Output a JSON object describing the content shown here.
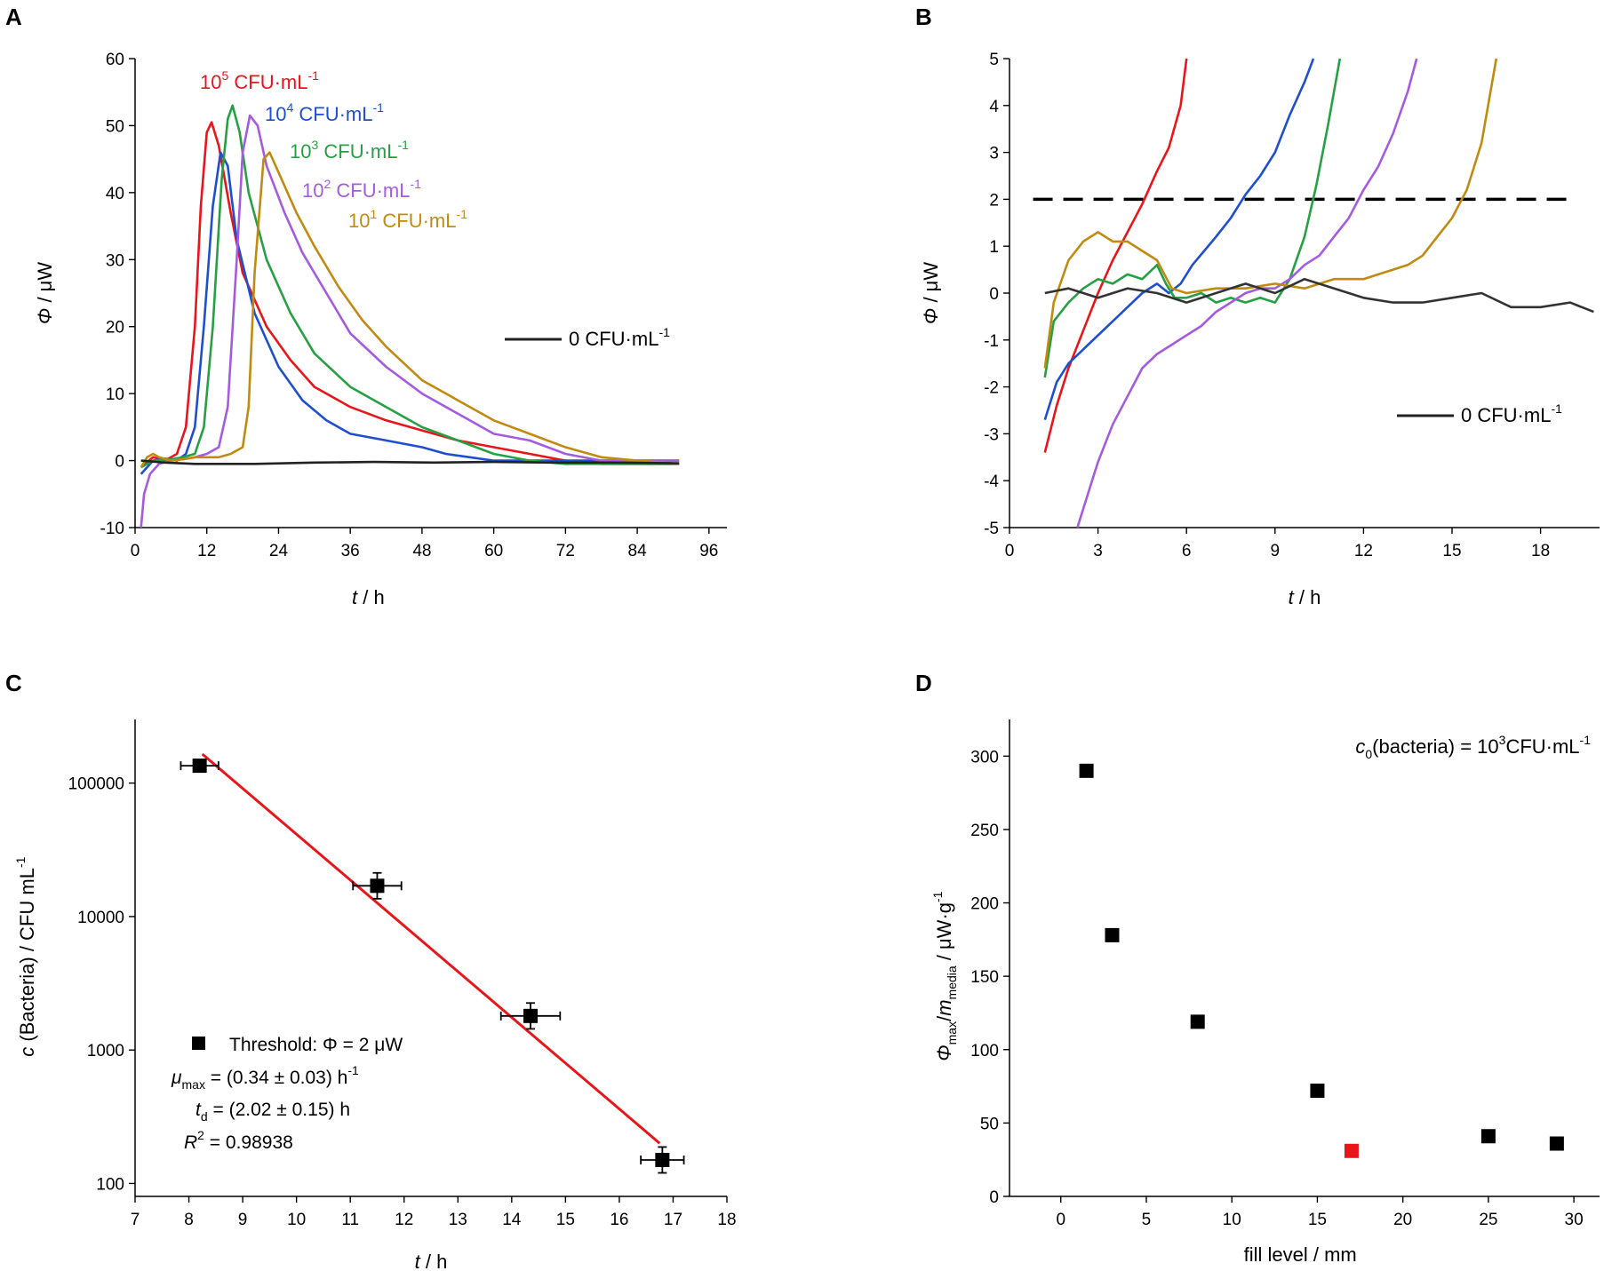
{
  "chart_data": [
    {
      "panel": "A",
      "type": "line",
      "xlabel": "t / h",
      "ylabel": "Φ / μW",
      "xlim": [
        0,
        99
      ],
      "ylim": [
        -10,
        60
      ],
      "xticks": [
        0,
        12,
        24,
        36,
        48,
        60,
        72,
        84,
        96
      ],
      "yticks": [
        -10,
        0,
        10,
        20,
        30,
        40,
        50,
        60
      ],
      "series": [
        {
          "name": "10^5 CFU·mL^-1",
          "label_base": "10",
          "label_exp": "5",
          "label_unit": "CFU·mL",
          "label_unit_exp": "-1",
          "color": "#e8151b",
          "x": [
            1,
            3,
            5,
            7,
            8.5,
            10,
            11,
            12,
            12.8,
            14,
            16,
            18,
            22,
            26,
            30,
            36,
            42,
            48,
            54,
            60,
            66,
            72,
            78,
            84,
            91
          ],
          "y": [
            -1,
            0.5,
            0,
            1,
            5,
            20,
            38,
            49,
            50.5,
            47,
            37,
            28,
            20,
            15,
            11,
            8,
            6,
            4.5,
            3,
            2,
            1,
            0,
            -0.5,
            -0.5,
            -0.5
          ]
        },
        {
          "name": "10^4 CFU·mL^-1",
          "label_base": "10",
          "label_exp": "4",
          "label_unit": "CFU·mL",
          "label_unit_exp": "-1",
          "color": "#1f4fcf",
          "x": [
            1,
            3,
            5,
            7,
            8.5,
            10,
            11.5,
            13,
            14.3,
            15.5,
            17,
            20,
            24,
            28,
            32,
            36,
            42,
            48,
            52,
            56,
            60,
            70,
            80,
            91
          ],
          "y": [
            -2,
            0,
            0.3,
            0,
            1,
            5,
            20,
            38,
            46,
            44,
            33,
            22,
            14,
            9,
            6,
            4,
            3,
            2,
            1,
            0.5,
            0,
            0,
            0,
            0
          ]
        },
        {
          "name": "10^3 CFU·mL^-1",
          "label_base": "10",
          "label_exp": "3",
          "label_unit": "CFU·mL",
          "label_unit_exp": "-1",
          "color": "#27a044",
          "x": [
            1,
            3,
            6,
            8,
            10,
            11.5,
            13,
            14.5,
            15.5,
            16.3,
            17.5,
            19,
            22,
            26,
            30,
            36,
            42,
            48,
            54,
            60,
            66,
            72,
            84,
            91
          ],
          "y": [
            -1,
            0,
            0.2,
            0.5,
            1,
            5,
            20,
            42,
            51,
            53,
            49,
            40,
            30,
            22,
            16,
            11,
            8,
            5,
            3,
            1,
            0,
            -0.5,
            -0.5,
            -0.5
          ]
        },
        {
          "name": "10^2 CFU·mL^-1",
          "label_base": "10",
          "label_exp": "2",
          "label_unit": "CFU·mL",
          "label_unit_exp": "-1",
          "color": "#a55be0",
          "x": [
            1,
            1.5,
            2.5,
            4,
            6,
            8,
            10,
            12,
            14,
            15.5,
            17,
            18,
            19.2,
            20.5,
            22,
            25,
            28,
            32,
            36,
            42,
            48,
            54,
            60,
            66,
            72,
            78,
            84,
            91
          ],
          "y": [
            -10,
            -5,
            -2,
            -0.5,
            0,
            0.2,
            0.5,
            1,
            2,
            8,
            30,
            46,
            51.5,
            50,
            44,
            37,
            31,
            25,
            19,
            14,
            10,
            7,
            4,
            3,
            1,
            0,
            0,
            0
          ]
        },
        {
          "name": "10^1 CFU·mL^-1",
          "label_base": "10",
          "label_exp": "1",
          "label_unit": "CFU·mL",
          "label_unit_exp": "-1",
          "color": "#c08b10",
          "x": [
            1,
            2,
            3,
            4,
            6,
            8,
            10,
            12,
            14,
            16,
            18,
            19,
            20,
            21.5,
            22.5,
            24,
            27,
            30,
            34,
            38,
            42,
            48,
            54,
            60,
            66,
            72,
            78,
            84,
            91
          ],
          "y": [
            -1,
            0.5,
            1,
            0.5,
            0,
            0.2,
            0.5,
            0.5,
            0.5,
            1,
            2,
            8,
            28,
            45,
            46,
            43,
            37,
            32,
            26,
            21,
            17,
            12,
            9,
            6,
            4,
            2,
            0.5,
            0,
            -0.5
          ]
        },
        {
          "name": "0 CFU·mL^-1",
          "label_base": "0 CFU·mL",
          "label_exp": "-1",
          "color": "#222222",
          "x": [
            1,
            5,
            10,
            20,
            30,
            40,
            50,
            60,
            70,
            80,
            91
          ],
          "y": [
            0,
            -0.3,
            -0.5,
            -0.5,
            -0.3,
            -0.2,
            -0.3,
            -0.2,
            -0.3,
            -0.3,
            -0.4
          ]
        }
      ]
    },
    {
      "panel": "B",
      "type": "line",
      "xlabel": "t / h",
      "ylabel": "Φ / μW",
      "xlim": [
        0,
        20
      ],
      "ylim": [
        -5,
        5
      ],
      "xticks": [
        0,
        3,
        6,
        9,
        12,
        15,
        18
      ],
      "yticks": [
        -5,
        -4,
        -3,
        -2,
        -1,
        0,
        1,
        2,
        3,
        4,
        5
      ],
      "threshold": 2,
      "legend_label": "0 CFU·mL",
      "legend_exp": "-1",
      "series": [
        {
          "name": "10^5 CFU·mL^-1",
          "color": "#e8151b",
          "x": [
            1.2,
            1.6,
            2.0,
            2.5,
            3.0,
            3.5,
            4.0,
            4.5,
            5.0,
            5.4,
            5.8,
            6.0
          ],
          "y": [
            -3.4,
            -2.4,
            -1.6,
            -0.8,
            0,
            0.7,
            1.3,
            1.9,
            2.6,
            3.1,
            4.0,
            5.0
          ]
        },
        {
          "name": "10^4 CFU·mL^-1",
          "color": "#1f4fcf",
          "x": [
            1.2,
            1.6,
            2.0,
            2.5,
            3.0,
            3.5,
            4.0,
            4.5,
            5.0,
            5.4,
            5.8,
            6.2,
            6.6,
            7.0,
            7.5,
            8.0,
            8.5,
            9.0,
            9.5,
            10.0,
            10.3
          ],
          "y": [
            -2.7,
            -1.9,
            -1.5,
            -1.2,
            -0.9,
            -0.6,
            -0.3,
            0,
            0.2,
            0.0,
            0.2,
            0.6,
            0.9,
            1.2,
            1.6,
            2.1,
            2.5,
            3.0,
            3.8,
            4.5,
            5.0
          ]
        },
        {
          "name": "10^3 CFU·mL^-1",
          "color": "#27a044",
          "x": [
            1.2,
            1.5,
            2.0,
            2.5,
            3.0,
            3.5,
            4.0,
            4.5,
            5.0,
            5.3,
            5.6,
            6.0,
            6.5,
            7.0,
            7.5,
            8.0,
            8.5,
            9.0,
            9.5,
            10.0,
            10.4,
            10.8,
            11.2
          ],
          "y": [
            -1.8,
            -0.6,
            -0.2,
            0.1,
            0.3,
            0.2,
            0.4,
            0.3,
            0.6,
            0.2,
            -0.1,
            -0.1,
            0,
            -0.2,
            -0.1,
            -0.2,
            -0.1,
            -0.2,
            0.3,
            1.2,
            2.3,
            3.6,
            5.0
          ]
        },
        {
          "name": "10^2 CFU·mL^-1",
          "color": "#a55be0",
          "x": [
            2.3,
            2.7,
            3.0,
            3.5,
            4.0,
            4.5,
            5.0,
            5.5,
            6.0,
            6.5,
            7.0,
            7.5,
            8.0,
            8.5,
            9.0,
            9.5,
            10.0,
            10.5,
            11.0,
            11.5,
            12.0,
            12.5,
            13.0,
            13.5,
            13.8
          ],
          "y": [
            -5,
            -4.2,
            -3.6,
            -2.8,
            -2.2,
            -1.6,
            -1.3,
            -1.1,
            -0.9,
            -0.7,
            -0.4,
            -0.2,
            0,
            0.1,
            0.1,
            0.3,
            0.6,
            0.8,
            1.2,
            1.6,
            2.2,
            2.7,
            3.4,
            4.3,
            5.0
          ]
        },
        {
          "name": "10^1 CFU·mL^-1",
          "color": "#c08b10",
          "x": [
            1.2,
            1.5,
            2.0,
            2.5,
            3.0,
            3.5,
            4.0,
            4.5,
            5.0,
            5.5,
            6.0,
            7.0,
            8.0,
            9.0,
            10.0,
            11.0,
            12.0,
            12.5,
            13.0,
            13.5,
            14.0,
            14.5,
            15.0,
            15.5,
            16.0,
            16.5
          ],
          "y": [
            -1.6,
            -0.2,
            0.7,
            1.1,
            1.3,
            1.1,
            1.1,
            0.9,
            0.7,
            0.1,
            0.0,
            0.1,
            0.1,
            0.2,
            0.1,
            0.3,
            0.3,
            0.4,
            0.5,
            0.6,
            0.8,
            1.2,
            1.6,
            2.2,
            3.2,
            5.0
          ]
        },
        {
          "name": "0 CFU·mL^-1",
          "color": "#333333",
          "x": [
            1.2,
            2,
            3,
            4,
            5,
            6,
            7,
            8,
            9,
            10,
            11,
            12,
            13,
            14,
            15,
            16,
            17,
            18,
            19,
            19.8
          ],
          "y": [
            0,
            0.1,
            -0.1,
            0.1,
            0,
            -0.2,
            0,
            0.2,
            0,
            0.3,
            0.1,
            -0.1,
            -0.2,
            -0.2,
            -0.1,
            0,
            -0.3,
            -0.3,
            -0.2,
            -0.4
          ]
        }
      ]
    },
    {
      "panel": "C",
      "type": "scatter",
      "xlabel": "t / h",
      "ylabel": "c (Bacteria) / CFU mL",
      "ylabel_exp": "-1",
      "xlim": [
        7,
        18
      ],
      "ylim_log": [
        80,
        300000
      ],
      "xticks": [
        7,
        8,
        9,
        10,
        11,
        12,
        13,
        14,
        15,
        16,
        17,
        18
      ],
      "yticks": [
        100,
        1000,
        10000,
        100000
      ],
      "ytick_labels": [
        "100",
        "1000",
        "10000",
        "100000"
      ],
      "points": [
        {
          "x": 8.2,
          "y": 135000,
          "xerr": 0.35,
          "yerr_factor": 1.08
        },
        {
          "x": 11.5,
          "y": 17000,
          "xerr": 0.45,
          "yerr_factor": 1.25
        },
        {
          "x": 14.35,
          "y": 1800,
          "xerr": 0.55,
          "yerr_factor": 1.25
        },
        {
          "x": 16.8,
          "y": 150,
          "xerr": 0.4,
          "yerr_factor": 1.25
        }
      ],
      "fit": {
        "x": [
          8.25,
          16.75
        ],
        "y": [
          165000,
          200
        ],
        "color": "#e8151b"
      },
      "legend": {
        "marker_label": "Threshold: Φ = 2 μW",
        "mu_symbol": "μ",
        "mu_sub": "max",
        "mu_value": " = (0.34 ± 0.03) h",
        "mu_exp": "-1",
        "td_symbol": "t",
        "td_sub": "d",
        "td_value": " = (2.02 ± 0.15) h",
        "r2_symbol": "R",
        "r2_exp": "2",
        "r2_value": " = 0.98938"
      }
    },
    {
      "panel": "D",
      "type": "scatter",
      "xlabel": "fill level / mm",
      "ylabel": "Φmax/mmedia / μW·g-1",
      "ylabel_parts": {
        "phi": "Φ",
        "phi_sub": "max",
        "slash": "/",
        "m": "m",
        "m_sub": "media",
        "unit": " / μW·g",
        "unit_exp": "-1"
      },
      "xlim": [
        -3,
        31.5
      ],
      "ylim": [
        0,
        325
      ],
      "xticks": [
        0,
        5,
        10,
        15,
        20,
        25,
        30
      ],
      "yticks": [
        0,
        50,
        100,
        150,
        200,
        250,
        300
      ],
      "points": [
        {
          "x": 1.5,
          "y": 290,
          "color": "#000000"
        },
        {
          "x": 3,
          "y": 178,
          "color": "#000000"
        },
        {
          "x": 8,
          "y": 119,
          "color": "#000000"
        },
        {
          "x": 15,
          "y": 72,
          "color": "#000000"
        },
        {
          "x": 17,
          "y": 31,
          "color": "#e8151b"
        },
        {
          "x": 25,
          "y": 41,
          "color": "#000000"
        },
        {
          "x": 29,
          "y": 36,
          "color": "#000000"
        }
      ],
      "annotation": {
        "c": "c",
        "c_sub": "0",
        "text": "(bacteria) = 10",
        "exp": "3",
        "unit": "CFU·mL",
        "unit_exp": "-1"
      }
    }
  ],
  "panel_labels": [
    "A",
    "B",
    "C",
    "D"
  ]
}
